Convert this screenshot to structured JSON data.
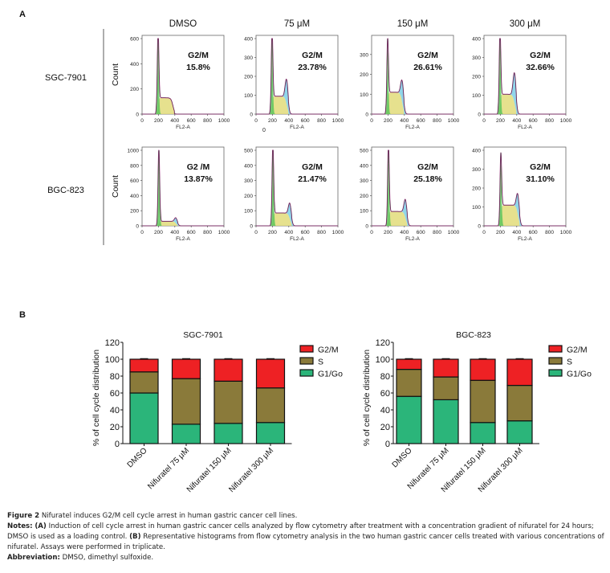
{
  "panel_a_label": "A",
  "panel_b_label": "B",
  "chart_data": [
    {
      "type": "area",
      "panel": "A",
      "description": "Flow cytometry DNA content histograms (cell cycle), rows = cell lines, columns = treatment",
      "columns": [
        "DMSO",
        "75 μM",
        "150 μM",
        "300 μM"
      ],
      "rows": [
        "SGC-7901",
        "BGC-823"
      ],
      "xlabel": "FL2-A",
      "ylabel": "Count",
      "xlim": [
        0,
        1000
      ],
      "xticks": [
        "0",
        "200",
        "400",
        "600",
        "800",
        "1000"
      ],
      "phase_colors": {
        "G1": "#5cc45a",
        "S": "#e2dc7a",
        "G2M": "#7ccfe6",
        "fit": "#b0308c",
        "data": "#333333"
      },
      "plots": [
        {
          "row": "SGC-7901",
          "column": "DMSO",
          "label_line1": "G2/M",
          "label_line2": "15.8%",
          "ylim": [
            0,
            600
          ],
          "yticks": [
            "0",
            "200",
            "400",
            "600"
          ],
          "g1_peak": 600,
          "s_level": 130,
          "g2_peak": 85
        },
        {
          "row": "SGC-7901",
          "column": "75 μM",
          "label_line1": "G2/M",
          "label_line2": "23.78%",
          "ylim": [
            0,
            400
          ],
          "yticks": [
            "0",
            "100",
            "200",
            "300",
            "400"
          ],
          "g1_peak": 400,
          "s_level": 95,
          "g2_peak": 190
        },
        {
          "row": "SGC-7901",
          "column": "150 μM",
          "label_line1": "G2/M",
          "label_line2": "26.61%",
          "ylim": [
            0,
            380
          ],
          "yticks": [
            "0",
            "100",
            "200",
            "300"
          ],
          "g1_peak": 330,
          "s_level": 110,
          "g2_peak": 175
        },
        {
          "row": "SGC-7901",
          "column": "300 μM",
          "label_line1": "G2/M",
          "label_line2": "32.66%",
          "ylim": [
            0,
            400
          ],
          "yticks": [
            "0",
            "100",
            "200",
            "300",
            "400"
          ],
          "g1_peak": 390,
          "s_level": 105,
          "g2_peak": 225
        },
        {
          "row": "BGC-823",
          "column": "DMSO",
          "label_line1": "G2 /M",
          "label_line2": "13.87%",
          "ylim": [
            0,
            1000
          ],
          "yticks": [
            "0",
            "200",
            "400",
            "600",
            "800",
            "1000"
          ],
          "g1_peak": 1000,
          "s_level": 60,
          "g2_peak": 110
        },
        {
          "row": "BGC-823",
          "column": "75 μM",
          "label_line1": "G2/M",
          "label_line2": "21.47%",
          "ylim": [
            0,
            500
          ],
          "yticks": [
            "0",
            "100",
            "200",
            "300",
            "400",
            "500"
          ],
          "g1_peak": 500,
          "s_level": 85,
          "g2_peak": 155
        },
        {
          "row": "BGC-823",
          "column": "150 μM",
          "label_line1": "G2/M",
          "label_line2": "25.18%",
          "ylim": [
            0,
            500
          ],
          "yticks": [
            "0",
            "100",
            "200",
            "300",
            "400",
            "500"
          ],
          "g1_peak": 500,
          "s_level": 95,
          "g2_peak": 180
        },
        {
          "row": "BGC-823",
          "column": "300 μM",
          "label_line1": "G2/M",
          "label_line2": "31.10%",
          "ylim": [
            0,
            400
          ],
          "yticks": [
            "0",
            "100",
            "200",
            "300",
            "400"
          ],
          "g1_peak": 330,
          "s_level": 110,
          "g2_peak": 175
        }
      ],
      "stray_marks": [
        "0"
      ]
    },
    {
      "type": "bar",
      "stacked": true,
      "panel": "B",
      "title": "SGC-7901",
      "ylabel": "% of cell cycle distribution",
      "xlabel": "",
      "ylim": [
        0,
        120
      ],
      "yticks": [
        "0",
        "20",
        "40",
        "60",
        "80",
        "100",
        "120"
      ],
      "categories": [
        "DMSO",
        "Nifuratel 75 μM",
        "Nifuratel 150 μM",
        "Nifuratel 300 μM"
      ],
      "series": [
        {
          "name": "G1/Go",
          "color": "#2bb57a",
          "values": [
            60,
            23,
            24,
            25
          ],
          "error": [
            2.5,
            1,
            1,
            2
          ]
        },
        {
          "name": "S",
          "color": "#8a7a3a",
          "values": [
            25,
            54,
            50,
            41
          ],
          "error": [
            3,
            1,
            1,
            1
          ]
        },
        {
          "name": "G2/M",
          "color": "#ee2124",
          "values": [
            15,
            23,
            26,
            34
          ],
          "error": [
            0.5,
            0.5,
            0.5,
            0.5
          ]
        }
      ],
      "legend": {
        "placement": "right",
        "entries": [
          "G2/M",
          "S",
          "G1/Go"
        ]
      }
    },
    {
      "type": "bar",
      "stacked": true,
      "panel": "B",
      "title": "BGC-823",
      "ylabel": "% of cell cycle distribution",
      "xlabel": "",
      "ylim": [
        0,
        120
      ],
      "yticks": [
        "0",
        "20",
        "40",
        "60",
        "80",
        "100",
        "120"
      ],
      "categories": [
        "DMSO",
        "Nifuratel 75 μM",
        "Nifuratel 150 μM",
        "Nifuratel 300 μM"
      ],
      "series": [
        {
          "name": "G1/Go",
          "color": "#2bb57a",
          "values": [
            56,
            52,
            25,
            27
          ],
          "error": [
            1,
            1,
            1,
            2
          ]
        },
        {
          "name": "S",
          "color": "#8a7a3a",
          "values": [
            32,
            27,
            50,
            42
          ],
          "error": [
            1,
            1,
            1,
            1
          ]
        },
        {
          "name": "G2/M",
          "color": "#ee2124",
          "values": [
            12,
            21,
            25,
            31
          ],
          "error": [
            0.5,
            0.5,
            0.5,
            0.5
          ]
        }
      ],
      "legend": {
        "placement": "right",
        "entries": [
          "G2/M",
          "S",
          "G1/Go"
        ]
      }
    }
  ],
  "caption": {
    "figure_label": "Figure 2",
    "figure_title": "Nifuratel induces G2/M cell cycle arrest in human gastric cancer cell lines.",
    "notes_label": "Notes:",
    "notes_a_label": "(A)",
    "notes_a_text": "Induction of cell cycle arrest in human gastric cancer cells analyzed by flow cytometry after treatment with a concentration gradient of nifuratel for 24 hours; DMSO is used as a loading control.",
    "notes_b_label": "(B)",
    "notes_b_text": "Representative histograms from flow cytometry analysis in the two human gastric cancer cells treated with various concentrations of nifuratel. Assays were performed in triplicate.",
    "abbreviation_label": "Abbreviation:",
    "abbreviation_text": "DMSO, dimethyl sulfoxide."
  }
}
